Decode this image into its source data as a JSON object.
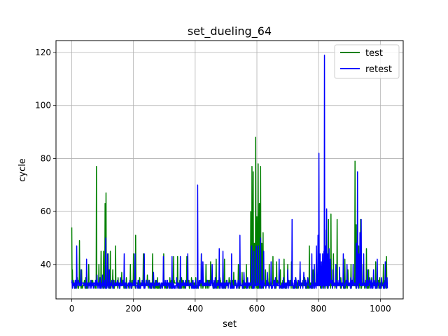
{
  "chart_data": {
    "type": "line",
    "title": "set_dueling_64",
    "xlabel": "set",
    "ylabel": "cycle",
    "xlim": [
      -51.1,
      1074.1
    ],
    "ylim": [
      27.0,
      124.5
    ],
    "xticks": [
      0,
      200,
      400,
      600,
      800,
      1000
    ],
    "yticks": [
      40,
      60,
      80,
      100,
      120
    ],
    "grid": true,
    "legend_position": "top-right",
    "baseline": 32,
    "series": [
      {
        "name": "test",
        "color": "#008000",
        "spikes": [
          [
            0,
            54
          ],
          [
            2,
            38
          ],
          [
            18,
            35
          ],
          [
            25,
            49
          ],
          [
            32,
            38
          ],
          [
            45,
            35
          ],
          [
            55,
            40
          ],
          [
            68,
            34
          ],
          [
            80,
            77
          ],
          [
            88,
            40
          ],
          [
            95,
            45
          ],
          [
            103,
            45
          ],
          [
            108,
            63
          ],
          [
            111,
            67
          ],
          [
            118,
            44
          ],
          [
            125,
            45
          ],
          [
            133,
            38
          ],
          [
            142,
            47
          ],
          [
            150,
            35
          ],
          [
            162,
            37
          ],
          [
            177,
            35
          ],
          [
            190,
            40
          ],
          [
            200,
            44
          ],
          [
            207,
            51
          ],
          [
            220,
            35
          ],
          [
            232,
            44
          ],
          [
            245,
            36
          ],
          [
            262,
            44
          ],
          [
            278,
            35
          ],
          [
            298,
            44
          ],
          [
            318,
            35
          ],
          [
            330,
            43
          ],
          [
            343,
            43
          ],
          [
            356,
            35
          ],
          [
            373,
            43
          ],
          [
            388,
            35
          ],
          [
            402,
            35
          ],
          [
            420,
            44
          ],
          [
            435,
            40
          ],
          [
            450,
            41
          ],
          [
            468,
            42
          ],
          [
            480,
            35
          ],
          [
            495,
            42
          ],
          [
            510,
            35
          ],
          [
            525,
            37
          ],
          [
            540,
            40
          ],
          [
            552,
            37
          ],
          [
            566,
            40
          ],
          [
            580,
            60
          ],
          [
            584,
            77
          ],
          [
            588,
            75
          ],
          [
            592,
            48
          ],
          [
            596,
            88
          ],
          [
            600,
            58
          ],
          [
            604,
            78
          ],
          [
            608,
            63
          ],
          [
            612,
            77
          ],
          [
            616,
            48
          ],
          [
            620,
            52
          ],
          [
            628,
            38
          ],
          [
            640,
            40
          ],
          [
            652,
            43
          ],
          [
            664,
            41
          ],
          [
            676,
            38
          ],
          [
            688,
            42
          ],
          [
            700,
            40
          ],
          [
            712,
            41
          ],
          [
            725,
            35
          ],
          [
            740,
            39
          ],
          [
            755,
            35
          ],
          [
            770,
            47
          ],
          [
            782,
            38
          ],
          [
            792,
            40
          ],
          [
            800,
            44
          ],
          [
            808,
            35
          ],
          [
            818,
            44
          ],
          [
            825,
            53
          ],
          [
            832,
            57
          ],
          [
            840,
            59
          ],
          [
            848,
            44
          ],
          [
            860,
            57
          ],
          [
            872,
            35
          ],
          [
            885,
            42
          ],
          [
            895,
            38
          ],
          [
            905,
            40
          ],
          [
            912,
            40
          ],
          [
            918,
            79
          ],
          [
            922,
            55
          ],
          [
            926,
            45
          ],
          [
            930,
            47
          ],
          [
            936,
            57
          ],
          [
            944,
            40
          ],
          [
            955,
            46
          ],
          [
            962,
            38
          ],
          [
            972,
            35
          ],
          [
            985,
            41
          ],
          [
            998,
            35
          ],
          [
            1010,
            40
          ],
          [
            1020,
            43
          ]
        ]
      },
      {
        "name": "retest",
        "color": "#0000ff",
        "spikes": [
          [
            5,
            33
          ],
          [
            16,
            47
          ],
          [
            22,
            34
          ],
          [
            30,
            38
          ],
          [
            40,
            33
          ],
          [
            48,
            42
          ],
          [
            62,
            34
          ],
          [
            75,
            33
          ],
          [
            82,
            36
          ],
          [
            92,
            35
          ],
          [
            100,
            36
          ],
          [
            110,
            50
          ],
          [
            116,
            44
          ],
          [
            122,
            38
          ],
          [
            130,
            34
          ],
          [
            145,
            33
          ],
          [
            158,
            35
          ],
          [
            170,
            44
          ],
          [
            188,
            34
          ],
          [
            205,
            44
          ],
          [
            215,
            34
          ],
          [
            235,
            44
          ],
          [
            250,
            34
          ],
          [
            265,
            37
          ],
          [
            282,
            33
          ],
          [
            297,
            43
          ],
          [
            310,
            34
          ],
          [
            325,
            43
          ],
          [
            340,
            35
          ],
          [
            352,
            43
          ],
          [
            365,
            33
          ],
          [
            376,
            44
          ],
          [
            392,
            34
          ],
          [
            408,
            70
          ],
          [
            420,
            44
          ],
          [
            425,
            41
          ],
          [
            440,
            34
          ],
          [
            455,
            40
          ],
          [
            465,
            35
          ],
          [
            478,
            46
          ],
          [
            490,
            45
          ],
          [
            503,
            34
          ],
          [
            518,
            44
          ],
          [
            530,
            34
          ],
          [
            545,
            51
          ],
          [
            558,
            37
          ],
          [
            570,
            35
          ],
          [
            583,
            47
          ],
          [
            590,
            45
          ],
          [
            598,
            47
          ],
          [
            605,
            47
          ],
          [
            612,
            50
          ],
          [
            622,
            45
          ],
          [
            634,
            37
          ],
          [
            646,
            41
          ],
          [
            660,
            35
          ],
          [
            672,
            42
          ],
          [
            686,
            35
          ],
          [
            700,
            38
          ],
          [
            714,
            57
          ],
          [
            726,
            35
          ],
          [
            740,
            41
          ],
          [
            752,
            37
          ],
          [
            765,
            35
          ],
          [
            778,
            44
          ],
          [
            786,
            40
          ],
          [
            793,
            47
          ],
          [
            798,
            51
          ],
          [
            801,
            82
          ],
          [
            805,
            44
          ],
          [
            809,
            41
          ],
          [
            813,
            44
          ],
          [
            817,
            45
          ],
          [
            819,
            119
          ],
          [
            822,
            47
          ],
          [
            826,
            61
          ],
          [
            830,
            44
          ],
          [
            834,
            46
          ],
          [
            838,
            42
          ],
          [
            846,
            38
          ],
          [
            856,
            40
          ],
          [
            868,
            39
          ],
          [
            880,
            44
          ],
          [
            892,
            40
          ],
          [
            904,
            35
          ],
          [
            912,
            40
          ],
          [
            922,
            48
          ],
          [
            926,
            75
          ],
          [
            930,
            44
          ],
          [
            934,
            52
          ],
          [
            938,
            57
          ],
          [
            946,
            44
          ],
          [
            958,
            38
          ],
          [
            966,
            35
          ],
          [
            978,
            38
          ],
          [
            990,
            42
          ],
          [
            1004,
            35
          ],
          [
            1016,
            41
          ],
          [
            1022,
            35
          ]
        ]
      }
    ]
  }
}
